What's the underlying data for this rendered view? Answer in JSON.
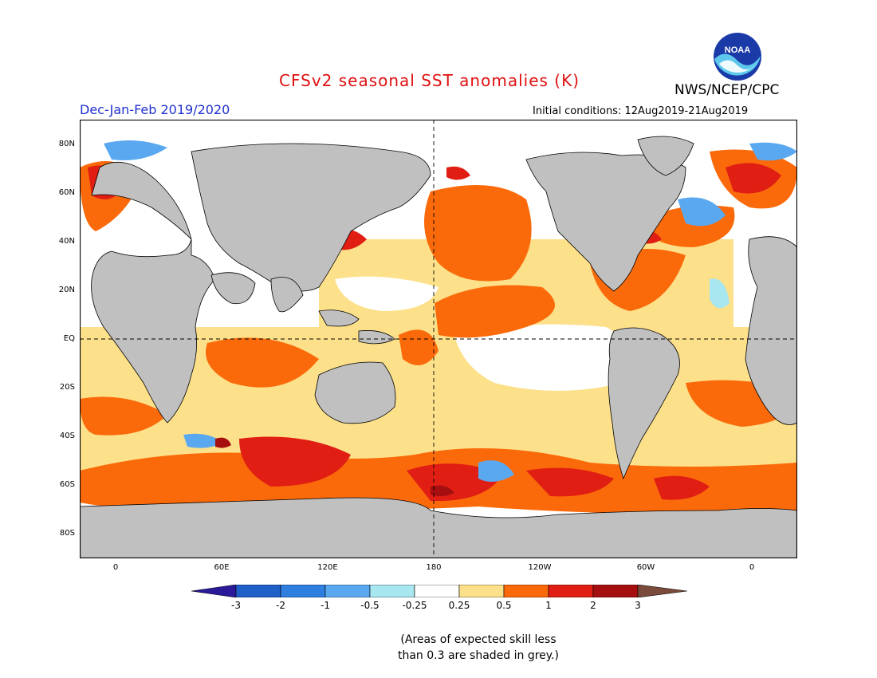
{
  "header": {
    "title": "CFSv2 seasonal SST anomalies (K)",
    "org": "NWS/NCEP/CPC",
    "season": "Dec-Jan-Feb 2019/2020",
    "initial_conditions": "Initial conditions: 12Aug2019-21Aug2019",
    "logo_text": "NOAA"
  },
  "axes": {
    "lat_labels": [
      "80N",
      "60N",
      "40N",
      "20N",
      "EQ",
      "20S",
      "40S",
      "60S",
      "80S"
    ],
    "lon_labels": [
      "0",
      "60E",
      "120E",
      "180",
      "120W",
      "60W",
      "0"
    ]
  },
  "colorbar": {
    "labels": [
      "-3",
      "-2",
      "-1",
      "-0.5",
      "-0.25",
      "0.25",
      "0.5",
      "1",
      "2",
      "3"
    ],
    "colors": [
      "#2a1a9a",
      "#1f5fc8",
      "#2f7fe0",
      "#5aa8f0",
      "#a8e6f0",
      "#ffffff",
      "#fde08a",
      "#fb6a0a",
      "#e01e14",
      "#a50f10",
      "#7a4a3a"
    ]
  },
  "note": {
    "line1": "(Areas of expected skill less",
    "line2": "than 0.3 are shaded in grey.)"
  },
  "colors": {
    "land": "#c0c0c0",
    "skill_grey": "#c8c8c8",
    "title_red": "#e01010",
    "season_blue": "#2030d0"
  }
}
